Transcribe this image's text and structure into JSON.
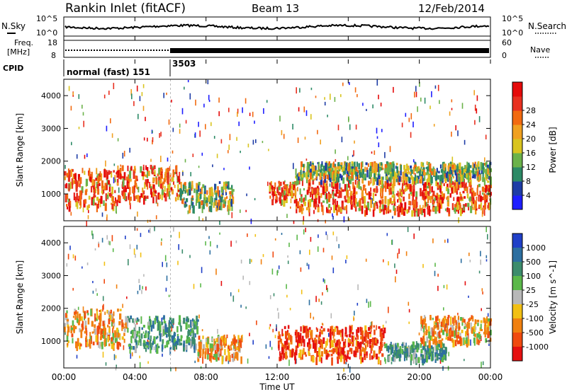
{
  "header": {
    "title": "Rankin Inlet (fitACF)",
    "beam": "Beam 13",
    "date": "12/Feb/2014"
  },
  "noise_panel": {
    "left_label": "N.Sky",
    "right_label": "N.Search",
    "left_ticks": [
      "10^5",
      "10^0"
    ],
    "right_ticks": [
      "10^5",
      "10^0"
    ]
  },
  "freq_panel": {
    "left_label_top": "Freq.",
    "left_label_bottom": "[MHz]",
    "right_label": "Nave",
    "left_ticks": [
      "18",
      "8"
    ],
    "right_ticks": [
      "60",
      "0"
    ]
  },
  "cpid_panel": {
    "label": "CPID",
    "entries": [
      {
        "text": "normal (fast) 151",
        "start_hour": 0
      },
      {
        "text": "3503",
        "start_hour": 6
      }
    ]
  },
  "xaxis": {
    "label": "Time UT",
    "ticks": [
      "00:00",
      "04:00",
      "08:00",
      "12:00",
      "16:00",
      "20:00",
      "00:00"
    ]
  },
  "chart_data": [
    {
      "type": "heatmap",
      "name": "power",
      "ylabel": "Slant Range [km]",
      "yticks": [
        1000,
        2000,
        3000,
        4000
      ],
      "ylim": [
        180,
        4500
      ],
      "xlim_hours": [
        0,
        24
      ],
      "colorbar": {
        "label": "Power [dB]",
        "ticks": [
          "4",
          "8",
          "12",
          "16",
          "20",
          "24",
          "28"
        ],
        "colors": [
          "#1e1eff",
          "#1e3ca6",
          "#2c8a66",
          "#6bb24a",
          "#d9c41f",
          "#f0a020",
          "#f26a10",
          "#e83020",
          "#e50a0a"
        ]
      },
      "bands": [
        {
          "t0": 0.0,
          "t1": 3.0,
          "r0": 600,
          "r1": 1800,
          "level": "high"
        },
        {
          "t0": 3.0,
          "t1": 6.5,
          "r0": 900,
          "r1": 1900,
          "level": "high"
        },
        {
          "t0": 6.5,
          "t1": 9.5,
          "r0": 600,
          "r1": 1400,
          "level": "mid"
        },
        {
          "t0": 11.5,
          "t1": 13.0,
          "r0": 800,
          "r1": 1400,
          "level": "high"
        },
        {
          "t0": 13.0,
          "t1": 24.0,
          "r0": 500,
          "r1": 1500,
          "level": "high"
        },
        {
          "t0": 13.0,
          "t1": 24.0,
          "r0": 1500,
          "r1": 2000,
          "level": "mid"
        }
      ]
    },
    {
      "type": "heatmap",
      "name": "velocity",
      "ylabel": "Slant Range [km]",
      "yticks": [
        1000,
        2000,
        3000,
        4000
      ],
      "ylim": [
        180,
        4500
      ],
      "xlim_hours": [
        0,
        24
      ],
      "colorbar": {
        "label": "Velocity [m s^-1]",
        "ticks": [
          "1000",
          "500",
          "100",
          "25",
          "-25",
          "-100",
          "-500",
          "-1000"
        ],
        "colors": [
          "#2040c8",
          "#2d6fa0",
          "#3c8c6c",
          "#5bb84a",
          "#b8b8b8",
          "#f2c014",
          "#f08010",
          "#f04a10",
          "#e51010"
        ]
      },
      "bands": [
        {
          "t0": 0.0,
          "t1": 3.5,
          "r0": 900,
          "r1": 2000,
          "level": "neg"
        },
        {
          "t0": 3.5,
          "t1": 7.5,
          "r0": 800,
          "r1": 1800,
          "level": "pos"
        },
        {
          "t0": 7.5,
          "t1": 10.0,
          "r0": 500,
          "r1": 1200,
          "level": "neg"
        },
        {
          "t0": 12.0,
          "t1": 18.0,
          "r0": 500,
          "r1": 1500,
          "level": "strongneg"
        },
        {
          "t0": 18.0,
          "t1": 21.5,
          "r0": 500,
          "r1": 1000,
          "level": "pos"
        },
        {
          "t0": 20.0,
          "t1": 24.0,
          "r0": 1000,
          "r1": 1800,
          "level": "neg"
        }
      ]
    }
  ]
}
